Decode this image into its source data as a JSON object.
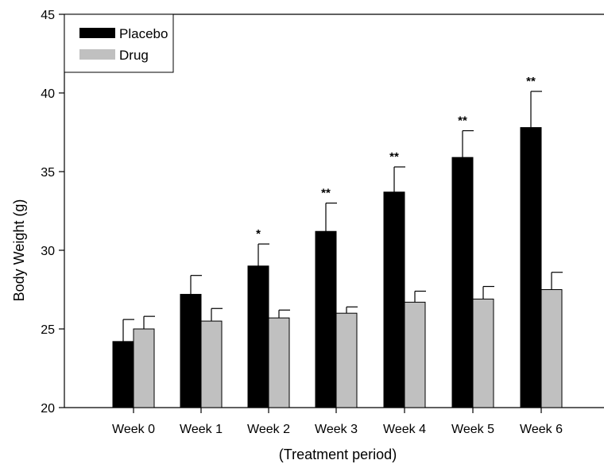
{
  "chart_data": {
    "type": "bar",
    "xlabel": "(Treatment period)",
    "ylabel": "Body Weight (g)",
    "ylim": [
      20,
      45
    ],
    "yticks": [
      20,
      25,
      30,
      35,
      40,
      45
    ],
    "categories": [
      "Week 0",
      "Week 1",
      "Week 2",
      "Week 3",
      "Week 4",
      "Week 5",
      "Week 6"
    ],
    "series": [
      {
        "name": "Placebo",
        "color": "#000000",
        "values": [
          24.2,
          27.2,
          29.0,
          31.2,
          33.7,
          35.9,
          37.8
        ],
        "errors": [
          1.4,
          1.2,
          1.4,
          1.8,
          1.6,
          1.7,
          2.3
        ]
      },
      {
        "name": "Drug",
        "color": "#c0c0c0",
        "values": [
          25.0,
          25.5,
          25.7,
          26.0,
          26.7,
          26.9,
          27.5
        ],
        "errors": [
          0.8,
          0.8,
          0.5,
          0.4,
          0.7,
          0.8,
          1.1
        ]
      }
    ],
    "annotations": [
      "",
      "",
      "*",
      "**",
      "**",
      "**",
      "**"
    ],
    "legend_position": "top-left",
    "grid": false
  }
}
